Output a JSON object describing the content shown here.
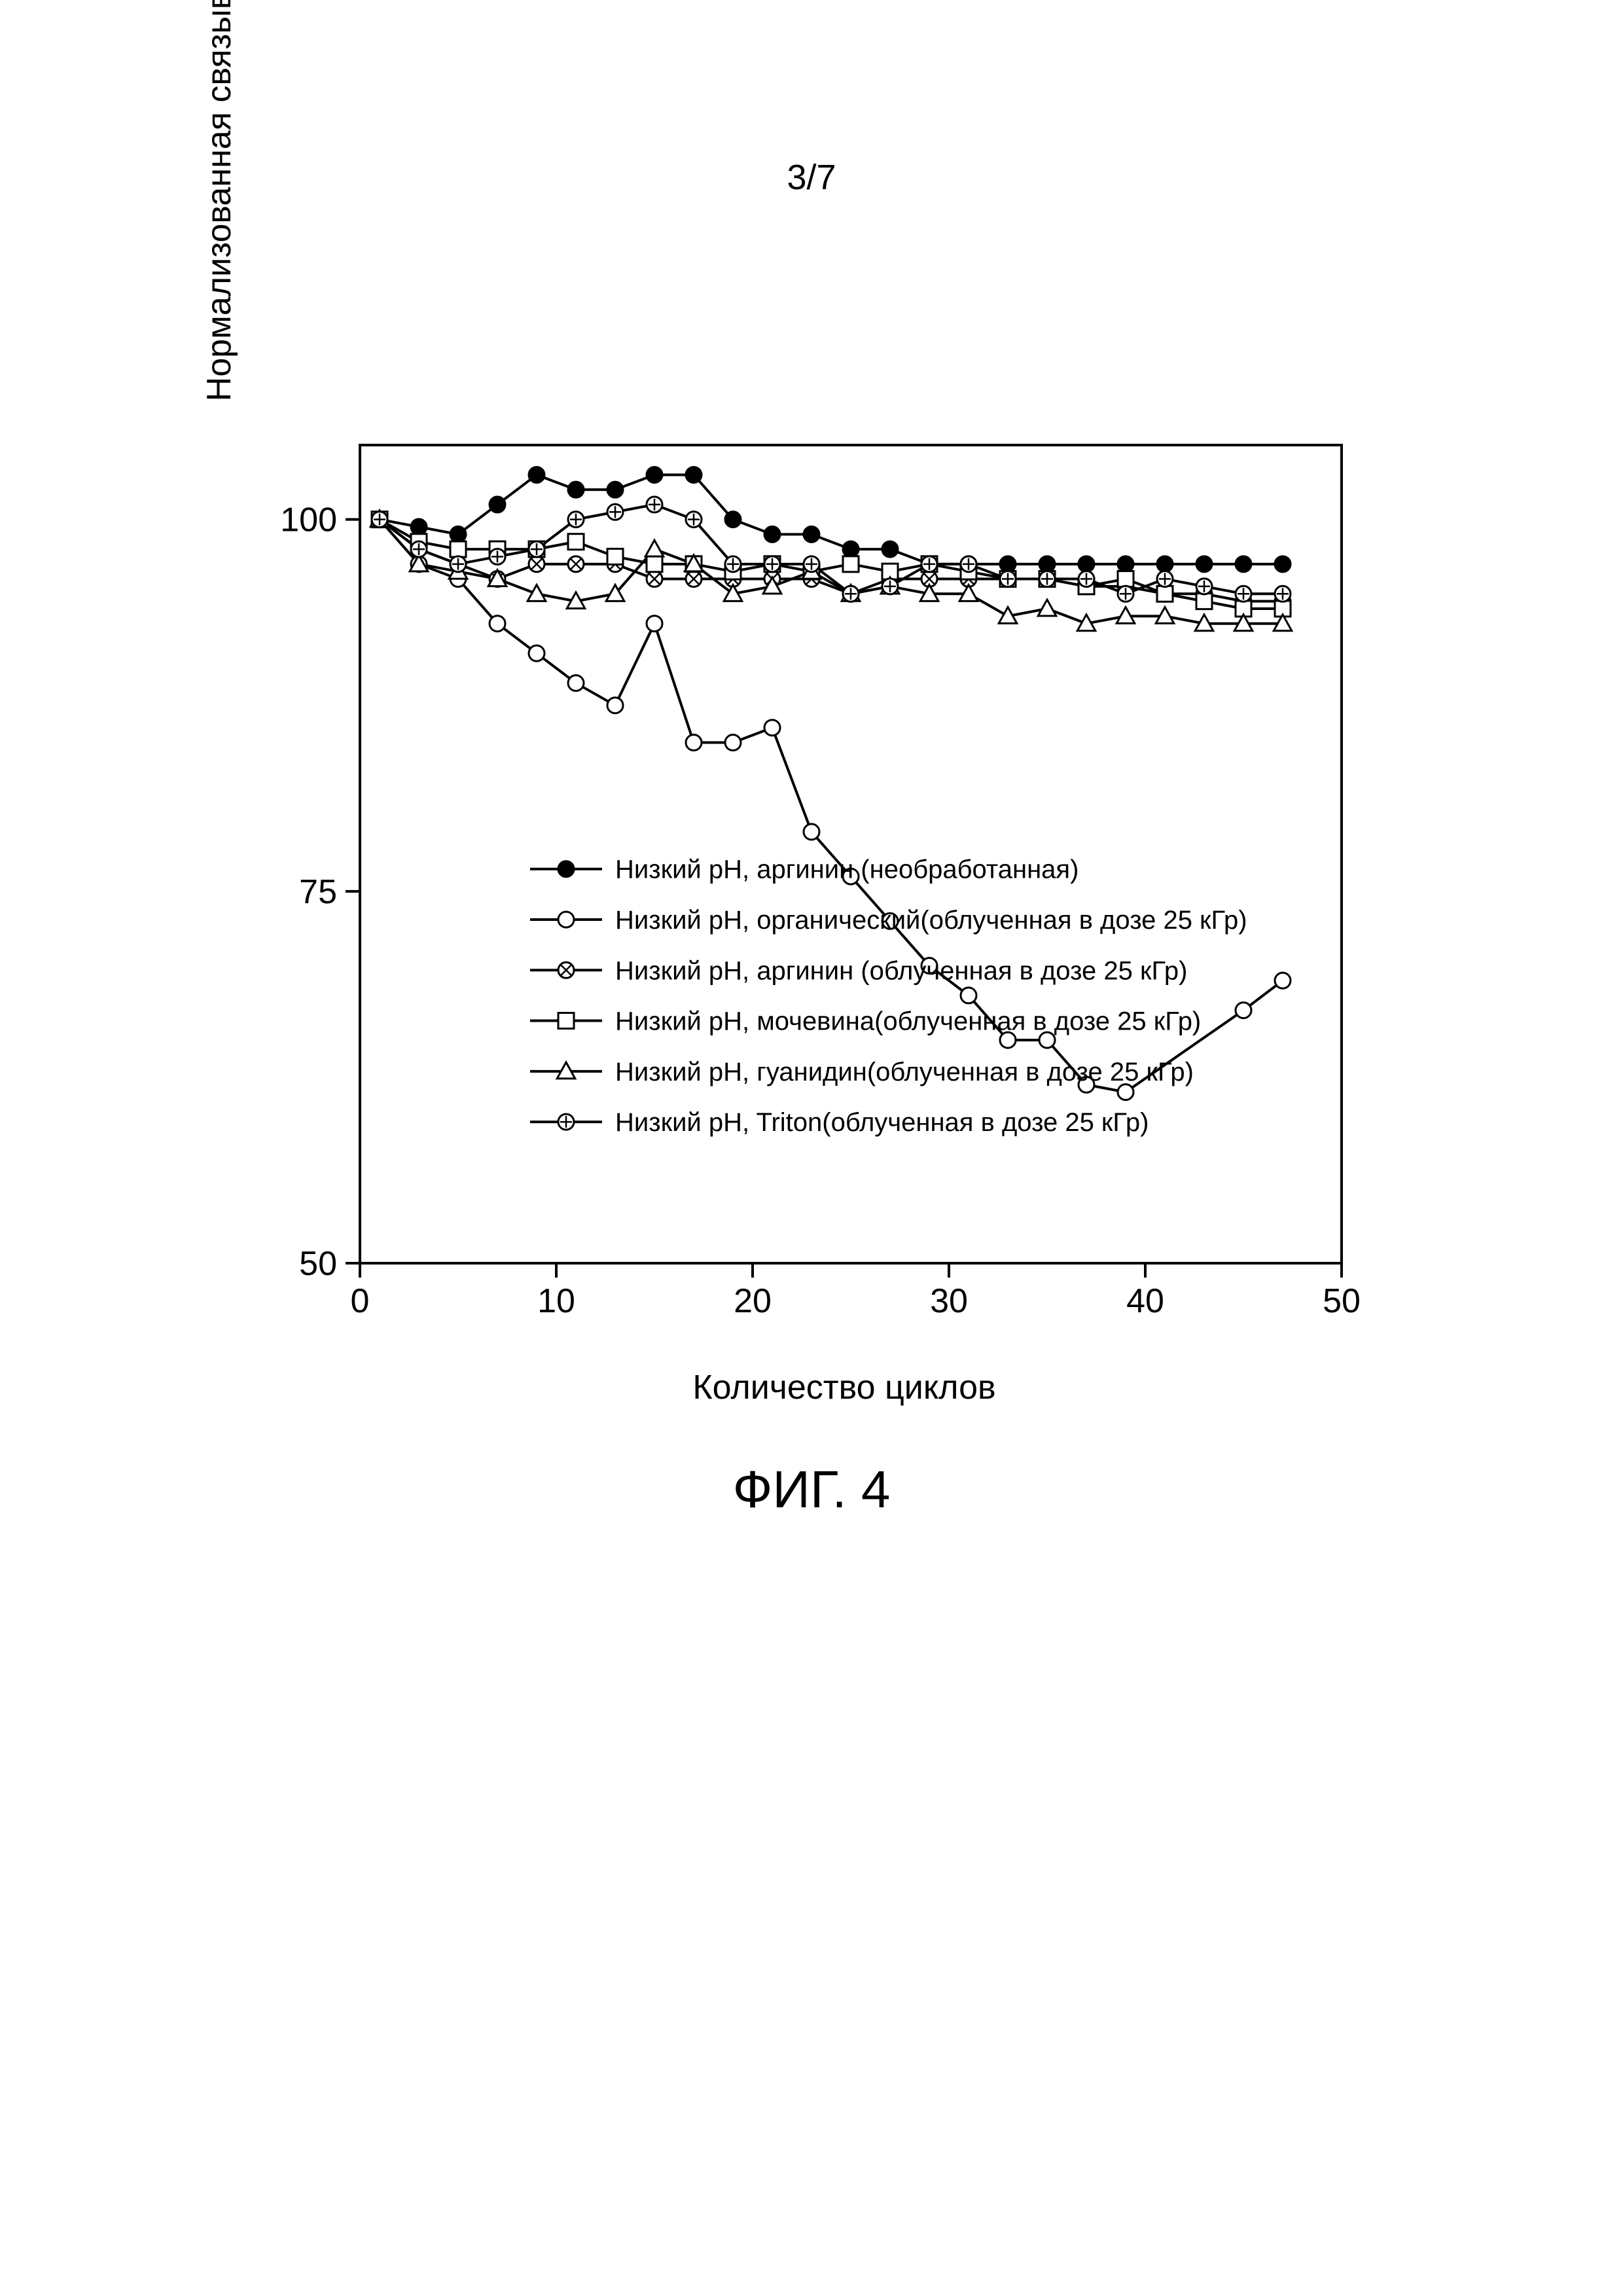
{
  "page_header": "3/7",
  "figure_caption": "ФИГ. 4",
  "chart": {
    "type": "line",
    "background_color": "#ffffff",
    "axis_color": "#000000",
    "xlabel": "Количество циклов",
    "ylabel": "Нормализованная связывающая способность (%)",
    "label_fontsize": 52,
    "tick_fontsize": 52,
    "legend_fontsize": 40,
    "xlim": [
      0,
      50
    ],
    "ylim": [
      50,
      105
    ],
    "xticks": [
      0,
      10,
      20,
      30,
      40,
      50
    ],
    "yticks": [
      50,
      75,
      100
    ],
    "line_width": 4,
    "marker_size": 12,
    "series": [
      {
        "name": "Низкий pH, аргинин (необработанная)",
        "marker": "circle-filled",
        "color": "#000000",
        "fill": "#000000",
        "x": [
          1,
          3,
          5,
          7,
          9,
          11,
          13,
          15,
          17,
          19,
          21,
          23,
          25,
          27,
          29,
          31,
          33,
          35,
          37,
          39,
          41,
          43,
          45,
          47
        ],
        "y": [
          100,
          99.5,
          99,
          101,
          103,
          102,
          102,
          103,
          103,
          100,
          99,
          99,
          98,
          98,
          97,
          97,
          97,
          97,
          97,
          97,
          97,
          97,
          97,
          97
        ]
      },
      {
        "name": "Низкий pH, органический(облученная в дозе 25 кГр)",
        "marker": "circle-open",
        "color": "#000000",
        "fill": "none",
        "x": [
          1,
          3,
          5,
          7,
          9,
          11,
          13,
          15,
          17,
          19,
          21,
          23,
          25,
          27,
          29,
          31,
          33,
          35,
          37,
          39,
          45,
          47
        ],
        "y": [
          100,
          97,
          96,
          93,
          91,
          89,
          87.5,
          93,
          85,
          85,
          86,
          79,
          76,
          73,
          70,
          68,
          65,
          65,
          62,
          61.5,
          67,
          69
        ]
      },
      {
        "name": "Низкий pH, аргинин (облученная в дозе 25 кГр)",
        "marker": "circle-hatched",
        "color": "#000000",
        "fill": "none",
        "x": [
          1,
          3,
          5,
          7,
          9,
          11,
          13,
          15,
          17,
          19,
          21,
          23,
          25,
          27,
          29,
          31,
          33,
          35,
          37,
          39,
          41,
          43,
          45,
          47
        ],
        "y": [
          100,
          98,
          97,
          96,
          97,
          97,
          97,
          96,
          96,
          96,
          96,
          96,
          95,
          96,
          96,
          96,
          96,
          96,
          95.5,
          95.5,
          95,
          95,
          94.5,
          94.5
        ]
      },
      {
        "name": "Низкий pH, мочевина(облученная в дозе 25 кГр)",
        "marker": "square-open",
        "color": "#000000",
        "fill": "none",
        "x": [
          1,
          3,
          5,
          7,
          9,
          11,
          13,
          15,
          17,
          19,
          21,
          23,
          25,
          27,
          29,
          31,
          33,
          35,
          37,
          39,
          41,
          43,
          45,
          47
        ],
        "y": [
          100,
          98.5,
          98,
          98,
          98,
          98.5,
          97.5,
          97,
          97,
          96.5,
          97,
          96.5,
          97,
          96.5,
          97,
          96.5,
          96,
          96,
          95.5,
          96,
          95,
          94.5,
          94,
          94
        ]
      },
      {
        "name": "Низкий pH, гуанидин(облученная в дозе 25 кГр)",
        "marker": "triangle-open",
        "color": "#000000",
        "fill": "none",
        "x": [
          1,
          3,
          5,
          7,
          9,
          11,
          13,
          15,
          17,
          19,
          21,
          23,
          25,
          27,
          29,
          31,
          33,
          35,
          37,
          39,
          41,
          43,
          45,
          47
        ],
        "y": [
          100,
          97,
          96.5,
          96,
          95,
          94.5,
          95,
          98,
          97,
          95,
          95.5,
          96.5,
          95,
          95.5,
          95,
          95,
          93.5,
          94,
          93,
          93.5,
          93.5,
          93,
          93,
          93
        ]
      },
      {
        "name": "Низкий pH, Triton(облученная в дозе 25 кГр)",
        "marker": "circle-plus",
        "color": "#000000",
        "fill": "none",
        "x": [
          1,
          3,
          5,
          7,
          9,
          11,
          13,
          15,
          17,
          19,
          21,
          23,
          25,
          27,
          29,
          31,
          33,
          35,
          37,
          39,
          41,
          43,
          45,
          47
        ],
        "y": [
          100,
          98,
          97,
          97.5,
          98,
          100,
          100.5,
          101,
          100,
          97,
          97,
          97,
          95,
          95.5,
          97,
          97,
          96,
          96,
          96,
          95,
          96,
          95.5,
          95,
          95
        ]
      }
    ],
    "legend": {
      "x": 10.5,
      "y_start": 76.5,
      "y_step": 3.4
    }
  }
}
